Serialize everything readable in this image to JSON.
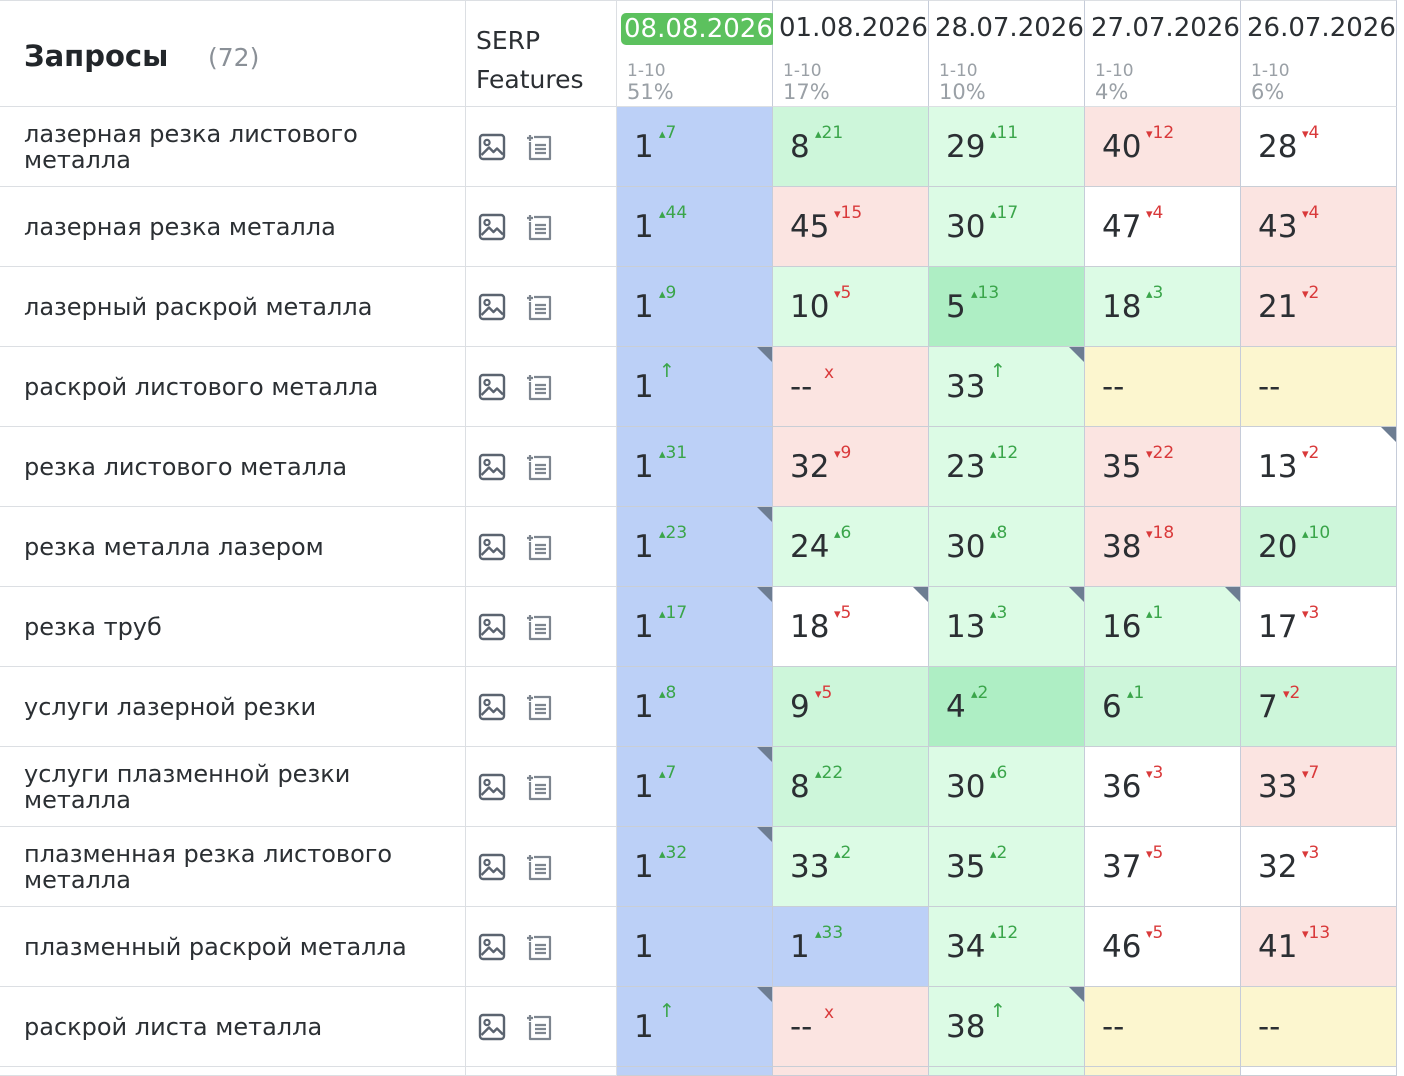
{
  "header": {
    "queries_title": "Запросы",
    "queries_count": "(72)",
    "serp_label_line1": "SERP",
    "serp_label_line2": "Features",
    "dates": [
      {
        "date": "08.08.2026",
        "range": "1-10",
        "pct": "51%",
        "current": true
      },
      {
        "date": "01.08.2026",
        "range": "1-10",
        "pct": "17%",
        "current": false
      },
      {
        "date": "28.07.2026",
        "range": "1-10",
        "pct": "10%",
        "current": false
      },
      {
        "date": "27.07.2026",
        "range": "1-10",
        "pct": "4%",
        "current": false
      },
      {
        "date": "26.07.2026",
        "range": "1-10",
        "pct": "6%",
        "current": false
      }
    ]
  },
  "icons": {
    "image": "image-icon",
    "feature": "featured-snippet-icon"
  },
  "colors": {
    "top": "#bcd0f7",
    "green_dark": "#aeeec4",
    "green": "#cdf6da",
    "green_light": "#dcfbe5",
    "red": "#fbe4e1",
    "yellow": "#fcf6cf",
    "white": "#ffffff",
    "current_date_badge": "#5cc15e",
    "up": "#3aa54a",
    "down": "#d9393a"
  },
  "rows": [
    {
      "query": "лазерная резка листового металла",
      "positions": [
        {
          "v": "1",
          "d": "7",
          "dir": "up",
          "bg": "top",
          "mark": false
        },
        {
          "v": "8",
          "d": "21",
          "dir": "up",
          "bg": "green",
          "mark": false
        },
        {
          "v": "29",
          "d": "11",
          "dir": "up",
          "bg": "green_light",
          "mark": false
        },
        {
          "v": "40",
          "d": "12",
          "dir": "down",
          "bg": "red",
          "mark": false
        },
        {
          "v": "28",
          "d": "4",
          "dir": "down",
          "bg": "white",
          "mark": false
        }
      ]
    },
    {
      "query": "лазерная резка металла",
      "positions": [
        {
          "v": "1",
          "d": "44",
          "dir": "up",
          "bg": "top",
          "mark": false
        },
        {
          "v": "45",
          "d": "15",
          "dir": "down",
          "bg": "red",
          "mark": false
        },
        {
          "v": "30",
          "d": "17",
          "dir": "up",
          "bg": "green_light",
          "mark": false
        },
        {
          "v": "47",
          "d": "4",
          "dir": "down",
          "bg": "white",
          "mark": false
        },
        {
          "v": "43",
          "d": "4",
          "dir": "down",
          "bg": "red",
          "mark": false
        }
      ]
    },
    {
      "query": "лазерный раскрой металла",
      "positions": [
        {
          "v": "1",
          "d": "9",
          "dir": "up",
          "bg": "top",
          "mark": false
        },
        {
          "v": "10",
          "d": "5",
          "dir": "down",
          "bg": "green_light",
          "mark": false
        },
        {
          "v": "5",
          "d": "13",
          "dir": "up",
          "bg": "green_dark",
          "mark": false
        },
        {
          "v": "18",
          "d": "3",
          "dir": "up",
          "bg": "green_light",
          "mark": false
        },
        {
          "v": "21",
          "d": "2",
          "dir": "down",
          "bg": "red",
          "mark": false
        }
      ]
    },
    {
      "query": "раскрой листового металла",
      "positions": [
        {
          "v": "1",
          "d": "↑",
          "dir": "new",
          "bg": "top",
          "mark": true
        },
        {
          "v": "--",
          "d": "x",
          "dir": "none",
          "bg": "red",
          "mark": false
        },
        {
          "v": "33",
          "d": "↑",
          "dir": "new",
          "bg": "green_light",
          "mark": true
        },
        {
          "v": "--",
          "d": "",
          "dir": "",
          "bg": "yellow",
          "mark": false
        },
        {
          "v": "--",
          "d": "",
          "dir": "",
          "bg": "yellow",
          "mark": false
        }
      ]
    },
    {
      "query": "резка листового металла",
      "positions": [
        {
          "v": "1",
          "d": "31",
          "dir": "up",
          "bg": "top",
          "mark": false
        },
        {
          "v": "32",
          "d": "9",
          "dir": "down",
          "bg": "red",
          "mark": false
        },
        {
          "v": "23",
          "d": "12",
          "dir": "up",
          "bg": "green_light",
          "mark": false
        },
        {
          "v": "35",
          "d": "22",
          "dir": "down",
          "bg": "red",
          "mark": false
        },
        {
          "v": "13",
          "d": "2",
          "dir": "down",
          "bg": "white",
          "mark": true
        }
      ]
    },
    {
      "query": "резка металла лазером",
      "positions": [
        {
          "v": "1",
          "d": "23",
          "dir": "up",
          "bg": "top",
          "mark": true
        },
        {
          "v": "24",
          "d": "6",
          "dir": "up",
          "bg": "green_light",
          "mark": false
        },
        {
          "v": "30",
          "d": "8",
          "dir": "up",
          "bg": "green_light",
          "mark": false
        },
        {
          "v": "38",
          "d": "18",
          "dir": "down",
          "bg": "red",
          "mark": false
        },
        {
          "v": "20",
          "d": "10",
          "dir": "up",
          "bg": "green",
          "mark": false
        }
      ]
    },
    {
      "query": "резка труб",
      "positions": [
        {
          "v": "1",
          "d": "17",
          "dir": "up",
          "bg": "top",
          "mark": true
        },
        {
          "v": "18",
          "d": "5",
          "dir": "down",
          "bg": "white",
          "mark": true
        },
        {
          "v": "13",
          "d": "3",
          "dir": "up",
          "bg": "green_light",
          "mark": true
        },
        {
          "v": "16",
          "d": "1",
          "dir": "up",
          "bg": "green_light",
          "mark": true
        },
        {
          "v": "17",
          "d": "3",
          "dir": "down",
          "bg": "white",
          "mark": false
        }
      ]
    },
    {
      "query": "услуги лазерной резки",
      "positions": [
        {
          "v": "1",
          "d": "8",
          "dir": "up",
          "bg": "top",
          "mark": false
        },
        {
          "v": "9",
          "d": "5",
          "dir": "down",
          "bg": "green",
          "mark": false
        },
        {
          "v": "4",
          "d": "2",
          "dir": "up",
          "bg": "green_dark",
          "mark": false
        },
        {
          "v": "6",
          "d": "1",
          "dir": "up",
          "bg": "green",
          "mark": false
        },
        {
          "v": "7",
          "d": "2",
          "dir": "down",
          "bg": "green",
          "mark": false
        }
      ]
    },
    {
      "query": "услуги плазменной резки металла",
      "positions": [
        {
          "v": "1",
          "d": "7",
          "dir": "up",
          "bg": "top",
          "mark": true
        },
        {
          "v": "8",
          "d": "22",
          "dir": "up",
          "bg": "green",
          "mark": false
        },
        {
          "v": "30",
          "d": "6",
          "dir": "up",
          "bg": "green_light",
          "mark": false
        },
        {
          "v": "36",
          "d": "3",
          "dir": "down",
          "bg": "white",
          "mark": false
        },
        {
          "v": "33",
          "d": "7",
          "dir": "down",
          "bg": "red",
          "mark": false
        }
      ]
    },
    {
      "query": "плазменная резка листового металла",
      "positions": [
        {
          "v": "1",
          "d": "32",
          "dir": "up",
          "bg": "top",
          "mark": true
        },
        {
          "v": "33",
          "d": "2",
          "dir": "up",
          "bg": "green_light",
          "mark": false
        },
        {
          "v": "35",
          "d": "2",
          "dir": "up",
          "bg": "green_light",
          "mark": false
        },
        {
          "v": "37",
          "d": "5",
          "dir": "down",
          "bg": "white",
          "mark": false
        },
        {
          "v": "32",
          "d": "3",
          "dir": "down",
          "bg": "white",
          "mark": false
        }
      ]
    },
    {
      "query": "плазменный раскрой металла",
      "positions": [
        {
          "v": "1",
          "d": "",
          "dir": "",
          "bg": "top",
          "mark": false
        },
        {
          "v": "1",
          "d": "33",
          "dir": "up",
          "bg": "top",
          "mark": false
        },
        {
          "v": "34",
          "d": "12",
          "dir": "up",
          "bg": "green_light",
          "mark": false
        },
        {
          "v": "46",
          "d": "5",
          "dir": "down",
          "bg": "white",
          "mark": false
        },
        {
          "v": "41",
          "d": "13",
          "dir": "down",
          "bg": "red",
          "mark": false
        }
      ]
    },
    {
      "query": "раскрой листа металла",
      "positions": [
        {
          "v": "1",
          "d": "↑",
          "dir": "new",
          "bg": "top",
          "mark": true
        },
        {
          "v": "--",
          "d": "x",
          "dir": "none",
          "bg": "red",
          "mark": false
        },
        {
          "v": "38",
          "d": "↑",
          "dir": "new",
          "bg": "green_light",
          "mark": true
        },
        {
          "v": "--",
          "d": "",
          "dir": "",
          "bg": "yellow",
          "mark": false
        },
        {
          "v": "--",
          "d": "",
          "dir": "",
          "bg": "yellow",
          "mark": false
        }
      ]
    }
  ],
  "partial_row": [
    "top",
    "red",
    "green_light",
    "yellow",
    "white"
  ]
}
